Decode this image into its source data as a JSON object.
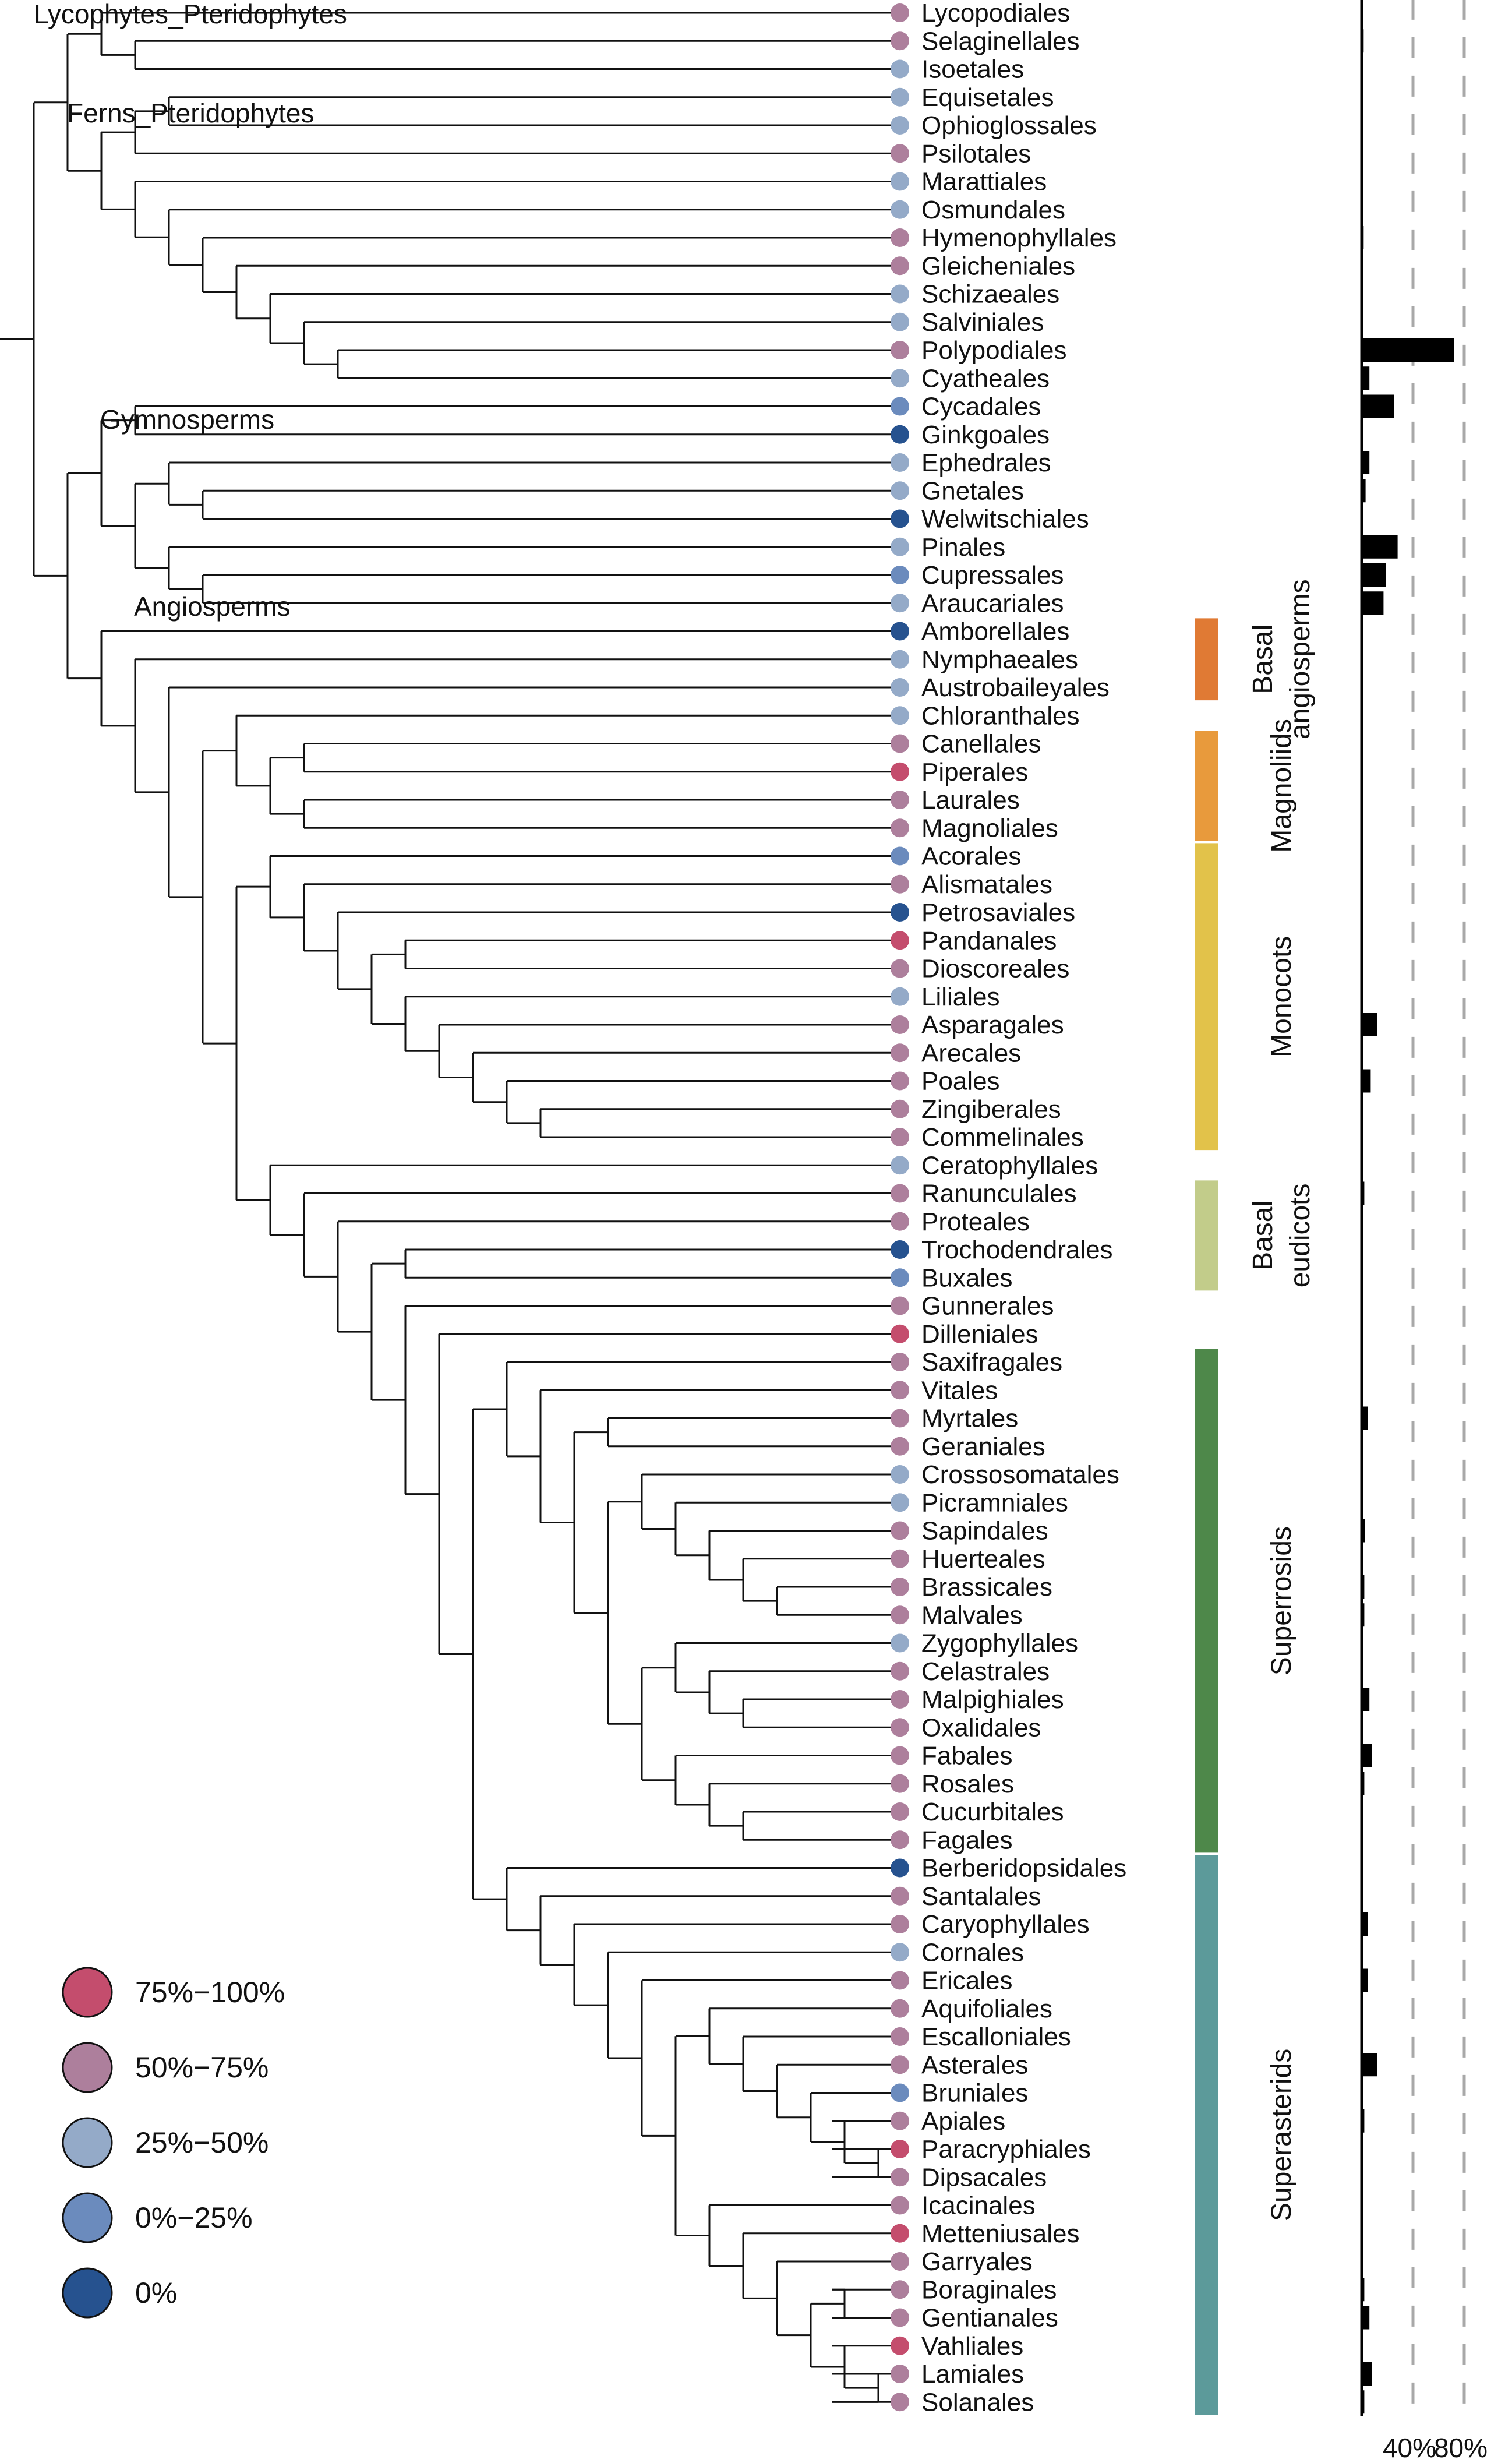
{
  "colors": {
    "75-100": "#c44d6d",
    "50-75": "#ad7f9c",
    "25-50": "#94aac8",
    "0-25": "#6b8bbd",
    "0": "#26528f",
    "basal_angiosperms": "#e07a34",
    "magnoliids": "#e89a3c",
    "monocots": "#e2c24a",
    "basal_eudicots": "#c2cc8a",
    "superrosids": "#4e884a",
    "superasterids": "#5c9a9a"
  },
  "clade_labels": {
    "lycophytes": "Lycophytes_Pteridophytes",
    "ferns": "Ferns_Pteridophytes",
    "gymnosperms": "Gymnosperms",
    "angiosperms": "Angiosperms"
  },
  "groups": [
    {
      "key": "basal_angiosperms",
      "lines": [
        "Basal",
        "angiosperms"
      ],
      "from": 22,
      "to": 24
    },
    {
      "key": "magnoliids",
      "lines": [
        "Magnoliids"
      ],
      "from": 26,
      "to": 29
    },
    {
      "key": "monocots",
      "lines": [
        "Monocots"
      ],
      "from": 30,
      "to": 40
    },
    {
      "key": "basal_eudicots",
      "lines": [
        "Basal",
        "eudicots"
      ],
      "from": 42,
      "to": 45
    },
    {
      "key": "superrosids",
      "lines": [
        "Superrosids"
      ],
      "from": 48,
      "to": 65
    },
    {
      "key": "superasterids",
      "lines": [
        "Superasterids"
      ],
      "from": 66,
      "to": 85
    }
  ],
  "tips": [
    {
      "name": "Lycopodiales",
      "cat": "50-75",
      "bar": 0.5
    },
    {
      "name": "Selaginellales",
      "cat": "50-75",
      "bar": 1.5
    },
    {
      "name": "Isoetales",
      "cat": "25-50",
      "bar": 0.5
    },
    {
      "name": "Equisetales",
      "cat": "25-50",
      "bar": 0.5
    },
    {
      "name": "Ophioglossales",
      "cat": "25-50",
      "bar": 0.5
    },
    {
      "name": "Psilotales",
      "cat": "50-75",
      "bar": 0.5
    },
    {
      "name": "Marattiales",
      "cat": "25-50",
      "bar": 0
    },
    {
      "name": "Osmundales",
      "cat": "25-50",
      "bar": 0.3
    },
    {
      "name": "Hymenophyllales",
      "cat": "50-75",
      "bar": 1.5
    },
    {
      "name": "Gleicheniales",
      "cat": "50-75",
      "bar": 0.5
    },
    {
      "name": "Schizaeales",
      "cat": "25-50",
      "bar": 0.5
    },
    {
      "name": "Salviniales",
      "cat": "25-50",
      "bar": 0.5
    },
    {
      "name": "Polypodiales",
      "cat": "50-75",
      "bar": 72
    },
    {
      "name": "Cyatheales",
      "cat": "25-50",
      "bar": 6
    },
    {
      "name": "Cycadales",
      "cat": "0-25",
      "bar": 25
    },
    {
      "name": "Ginkgoales",
      "cat": "0",
      "bar": 0
    },
    {
      "name": "Ephedrales",
      "cat": "25-50",
      "bar": 6
    },
    {
      "name": "Gnetales",
      "cat": "25-50",
      "bar": 3
    },
    {
      "name": "Welwitschiales",
      "cat": "0",
      "bar": 0
    },
    {
      "name": "Pinales",
      "cat": "25-50",
      "bar": 28
    },
    {
      "name": "Cupressales",
      "cat": "0-25",
      "bar": 19
    },
    {
      "name": "Araucariales",
      "cat": "25-50",
      "bar": 17
    },
    {
      "name": "Amborellales",
      "cat": "0",
      "bar": 0
    },
    {
      "name": "Nymphaeales",
      "cat": "25-50",
      "bar": 0.5
    },
    {
      "name": "Austrobaileyales",
      "cat": "25-50",
      "bar": 0.5
    },
    {
      "name": "Chloranthales",
      "cat": "25-50",
      "bar": 0.5
    },
    {
      "name": "Canellales",
      "cat": "50-75",
      "bar": 0.3
    },
    {
      "name": "Piperales",
      "cat": "75-100",
      "bar": 0.5
    },
    {
      "name": "Laurales",
      "cat": "50-75",
      "bar": 0.5
    },
    {
      "name": "Magnoliales",
      "cat": "50-75",
      "bar": 0.5
    },
    {
      "name": "Acorales",
      "cat": "0-25",
      "bar": 0.5
    },
    {
      "name": "Alismatales",
      "cat": "50-75",
      "bar": 1
    },
    {
      "name": "Petrosaviales",
      "cat": "0",
      "bar": 0
    },
    {
      "name": "Pandanales",
      "cat": "75-100",
      "bar": 0.5
    },
    {
      "name": "Dioscoreales",
      "cat": "50-75",
      "bar": 0.5
    },
    {
      "name": "Liliales",
      "cat": "25-50",
      "bar": 0.5
    },
    {
      "name": "Asparagales",
      "cat": "50-75",
      "bar": 12
    },
    {
      "name": "Arecales",
      "cat": "50-75",
      "bar": 0.5
    },
    {
      "name": "Poales",
      "cat": "50-75",
      "bar": 7
    },
    {
      "name": "Zingiberales",
      "cat": "50-75",
      "bar": 0.5
    },
    {
      "name": "Commelinales",
      "cat": "50-75",
      "bar": 0.5
    },
    {
      "name": "Ceratophyllales",
      "cat": "25-50",
      "bar": 0.3
    },
    {
      "name": "Ranunculales",
      "cat": "50-75",
      "bar": 2
    },
    {
      "name": "Proteales",
      "cat": "50-75",
      "bar": 0.5
    },
    {
      "name": "Trochodendrales",
      "cat": "0",
      "bar": 0
    },
    {
      "name": "Buxales",
      "cat": "0-25",
      "bar": 0.3
    },
    {
      "name": "Gunnerales",
      "cat": "50-75",
      "bar": 0.3
    },
    {
      "name": "Dilleniales",
      "cat": "75-100",
      "bar": 0.5
    },
    {
      "name": "Saxifragales",
      "cat": "50-75",
      "bar": 1
    },
    {
      "name": "Vitales",
      "cat": "50-75",
      "bar": 0.5
    },
    {
      "name": "Myrtales",
      "cat": "50-75",
      "bar": 5
    },
    {
      "name": "Geraniales",
      "cat": "50-75",
      "bar": 0.5
    },
    {
      "name": "Crossosomatales",
      "cat": "25-50",
      "bar": 0.3
    },
    {
      "name": "Picramniales",
      "cat": "25-50",
      "bar": 0.3
    },
    {
      "name": "Sapindales",
      "cat": "50-75",
      "bar": 2.5
    },
    {
      "name": "Huerteales",
      "cat": "50-75",
      "bar": 0.3
    },
    {
      "name": "Brassicales",
      "cat": "50-75",
      "bar": 2
    },
    {
      "name": "Malvales",
      "cat": "50-75",
      "bar": 2
    },
    {
      "name": "Zygophyllales",
      "cat": "25-50",
      "bar": 0.5
    },
    {
      "name": "Celastrales",
      "cat": "50-75",
      "bar": 1
    },
    {
      "name": "Malpighiales",
      "cat": "50-75",
      "bar": 6
    },
    {
      "name": "Oxalidales",
      "cat": "50-75",
      "bar": 0.5
    },
    {
      "name": "Fabales",
      "cat": "50-75",
      "bar": 8
    },
    {
      "name": "Rosales",
      "cat": "50-75",
      "bar": 2
    },
    {
      "name": "Cucurbitales",
      "cat": "50-75",
      "bar": 0.5
    },
    {
      "name": "Fagales",
      "cat": "50-75",
      "bar": 0.5
    },
    {
      "name": "Berberidopsidales",
      "cat": "0",
      "bar": 0
    },
    {
      "name": "Santalales",
      "cat": "50-75",
      "bar": 1
    },
    {
      "name": "Caryophyllales",
      "cat": "50-75",
      "bar": 5
    },
    {
      "name": "Cornales",
      "cat": "25-50",
      "bar": 0.5
    },
    {
      "name": "Ericales",
      "cat": "50-75",
      "bar": 5
    },
    {
      "name": "Aquifoliales",
      "cat": "50-75",
      "bar": 0.3
    },
    {
      "name": "Escalloniales",
      "cat": "50-75",
      "bar": 0.3
    },
    {
      "name": "Asterales",
      "cat": "50-75",
      "bar": 12
    },
    {
      "name": "Bruniales",
      "cat": "0-25",
      "bar": 0.3
    },
    {
      "name": "Apiales",
      "cat": "50-75",
      "bar": 2
    },
    {
      "name": "Paracryphiales",
      "cat": "75-100",
      "bar": 0.3
    },
    {
      "name": "Dipsacales",
      "cat": "50-75",
      "bar": 1
    },
    {
      "name": "Icacinales",
      "cat": "50-75",
      "bar": 0.3
    },
    {
      "name": "Metteniusales",
      "cat": "75-100",
      "bar": 0.3
    },
    {
      "name": "Garryales",
      "cat": "50-75",
      "bar": 0.3
    },
    {
      "name": "Boraginales",
      "cat": "50-75",
      "bar": 2
    },
    {
      "name": "Gentianales",
      "cat": "50-75",
      "bar": 6
    },
    {
      "name": "Vahliales",
      "cat": "75-100",
      "bar": 0.3
    },
    {
      "name": "Lamiales",
      "cat": "50-75",
      "bar": 8
    },
    {
      "name": "Solanales",
      "cat": "50-75",
      "bar": 2
    }
  ],
  "tree": "((((Lycopodiales,(Selaginellales,Isoetales)),(((Equisetales,Ophioglossales),Psilotales),(Marattiales,(Osmundales,(Hymenophyllales,(Gleicheniales,(Schizaeales,(Salviniales,(Polypodiales,Cyatheales))))))))),(((Cycadales,Ginkgoales),((Ephedrales,(Gnetales,Welwitschiales)),(Pinales,(Cupressales,Araucariales)))),(Amborellales,(Nymphaeales,(Austrobaileyales,((Chloranthales,((Canellales,Piperales),(Laurales,Magnoliales))),((Acorales,(Alismatales,(Petrosaviales,((Pandanales,Dioscoreales),(Liliales,(Asparagales,(Arecales,(Poales,(Zingiberales,Commelinales))))))))),(Ceratophyllales,(Ranunculales,(Proteales,((Trochodendrales,Buxales),(Gunnerales,(Dilleniales,((Saxifragales,(Vitales,((Myrtales,Geraniales),((Crossosomatales,(Picramniales,(Sapindales,(Huerteales,(Brassicales,Malvales))))),((Zygophyllales,(Celastrales,(Malpighiales,Oxalidales))),(Fabales,(Rosales,(Cucurbitales,Fagales)))))))),(Berberidopsidales,(Santalales,(Caryophyllales,(Cornales,(Ericales,((Aquifoliales,(Escalloniales,(Asterales,(Bruniales,(Apiales,(Paracryphiales,Dipsacales)))))),(Icacinales,(Metteniusales,(Garryales,((Boraginales,Gentianales),(Vahliales,(Lamiales,Solanales))))))))))))))))))))))))))))",
  "legend": [
    {
      "cat": "75-100",
      "label": "75%−100%"
    },
    {
      "cat": "50-75",
      "label": "50%−75%"
    },
    {
      "cat": "25-50",
      "label": "25%−50%"
    },
    {
      "cat": "0-25",
      "label": "0%−25%"
    },
    {
      "cat": "0",
      "label": "0%"
    }
  ],
  "bar_axis": {
    "ticks": [
      {
        "value": 40,
        "label": "40%"
      },
      {
        "value": 80,
        "label": "80%"
      }
    ]
  }
}
